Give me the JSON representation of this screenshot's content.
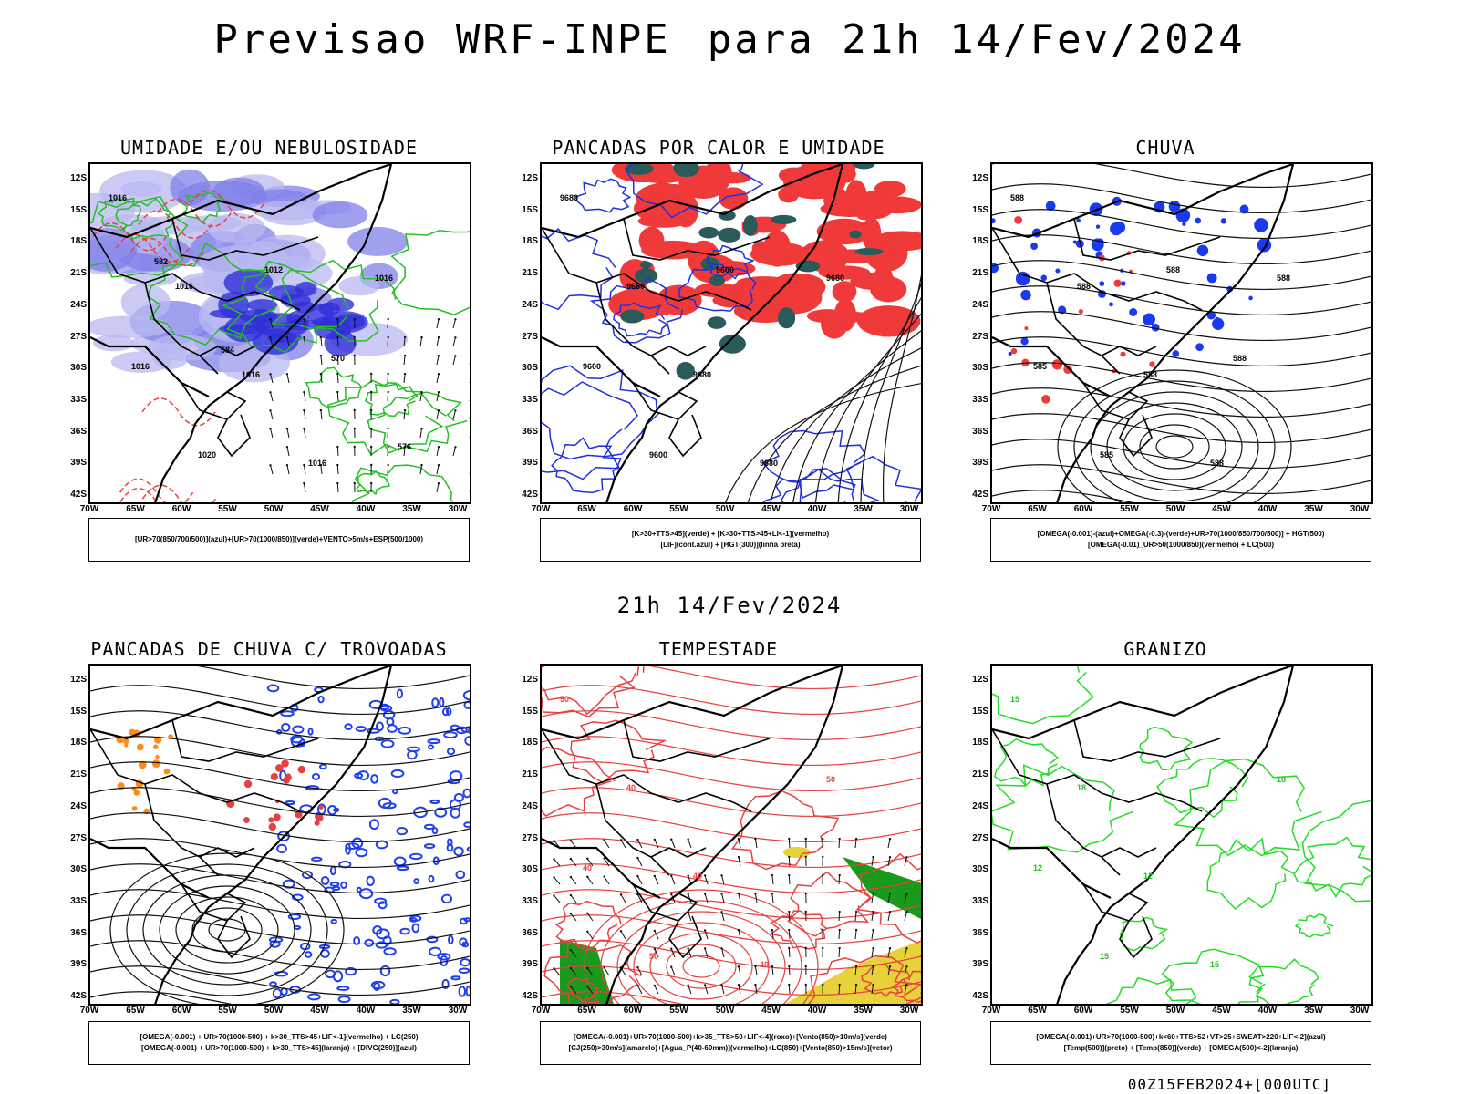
{
  "title": {
    "left": "Previsao WRF-INPE",
    "right": "para 21h 14/Fev/2024"
  },
  "subtitle": "21h 14/Fev/2024",
  "footer": "00Z15FEB2024+[000UTC]",
  "axis": {
    "lat_labels": [
      "12S",
      "15S",
      "18S",
      "21S",
      "24S",
      "27S",
      "30S",
      "33S",
      "36S",
      "39S",
      "42S"
    ],
    "lon_labels": [
      "70W",
      "65W",
      "60W",
      "55W",
      "50W",
      "45W",
      "40W",
      "35W",
      "30W"
    ]
  },
  "panels": [
    {
      "title": "UMIDADE E/OU NEBULOSIDADE",
      "legend": [
        "[UR>70(850/700/500)](azul)+[UR>70(1000/850)](verde)+VENTO>5m/s+ESP(500/1000)"
      ],
      "contour_labels": [
        "1016",
        "1016",
        "1016",
        "1016",
        "1016",
        "1016",
        "1020",
        "1012",
        "570",
        "576",
        "582",
        "584"
      ],
      "layers": [
        "blue-fill",
        "green-contour",
        "red-contour",
        "black-contour",
        "vectors"
      ]
    },
    {
      "title": "PANCADAS POR CALOR E UMIDADE",
      "legend": [
        "[K>30+TTS>45](verde) + [K>30+TTS>45+LI<-1](vermelho)",
        "[LIF](cont.azul) + [HGT(300)](linha preta)"
      ],
      "contour_labels": [
        "9680",
        "9680",
        "9680",
        "9680",
        "9680",
        "9600",
        "9600",
        "9600"
      ],
      "layers": [
        "red-fill",
        "teal-fill",
        "blue-contour",
        "black-contour"
      ]
    },
    {
      "title": "CHUVA",
      "legend": [
        "[OMEGA(-0.001)-(azul)+OMEGA(-0.3)-(verde)+UR>70(1000/850/700/500)] + HGT(500)",
        "[OMEGA(-0.01)_UR>50(1000/850)(vermelho) + LC(500)"
      ],
      "contour_labels": [
        "588",
        "588",
        "588",
        "588",
        "588",
        "585",
        "585",
        "588",
        "588"
      ],
      "layers": [
        "blue-fill",
        "red-fill",
        "black-streamlines"
      ]
    },
    {
      "title": "PANCADAS DE CHUVA C/ TROVOADAS",
      "legend": [
        "[OMEGA(-0.001) + UR>70(1000-500) + k>30_TTS>45+LIF<-1](vermelho) + LC(250)",
        "[OMEGA(-0.001) + UR>70(1000-500) + k>30_TTS>45](laranja) + [DIVG(250)](azul)"
      ],
      "contour_labels": [],
      "layers": [
        "blue-contour",
        "red-fill",
        "orange-fill",
        "black-streamlines"
      ]
    },
    {
      "title": "TEMPESTADE",
      "legend": [
        "[OMEGA(-0.001)+UR>70(1000-500)+k>35_TTS>50+LIF<-4](roxo)+[Vento(850)>10m/s](verde)",
        "[CJ(250)>30m/s](amarelo)+[Agua_P(40-60mm)](vermelho)+LC(850)+[Vento(850)>15m/s](vetor)"
      ],
      "contour_labels": [
        "50",
        "40",
        "40",
        "40",
        "50",
        "40",
        "50"
      ],
      "layers": [
        "red-contour",
        "green-fill",
        "yellow-fill",
        "vectors"
      ]
    },
    {
      "title": "GRANIZO",
      "legend": [
        "[OMEGA(-0.001)+UR>70(1000-500)+k<60+TTS>52+VT>25+SWEAT>220+LIF<-2](azul)",
        "[Temp(500)](preto) + [Temp(850)](verde) + [OMEGA(500)<-2](laranja)"
      ],
      "contour_labels": [
        "15",
        "18",
        "12",
        "15",
        "18",
        "12",
        "15"
      ],
      "layers": [
        "green-contour",
        "black-contour"
      ]
    }
  ]
}
